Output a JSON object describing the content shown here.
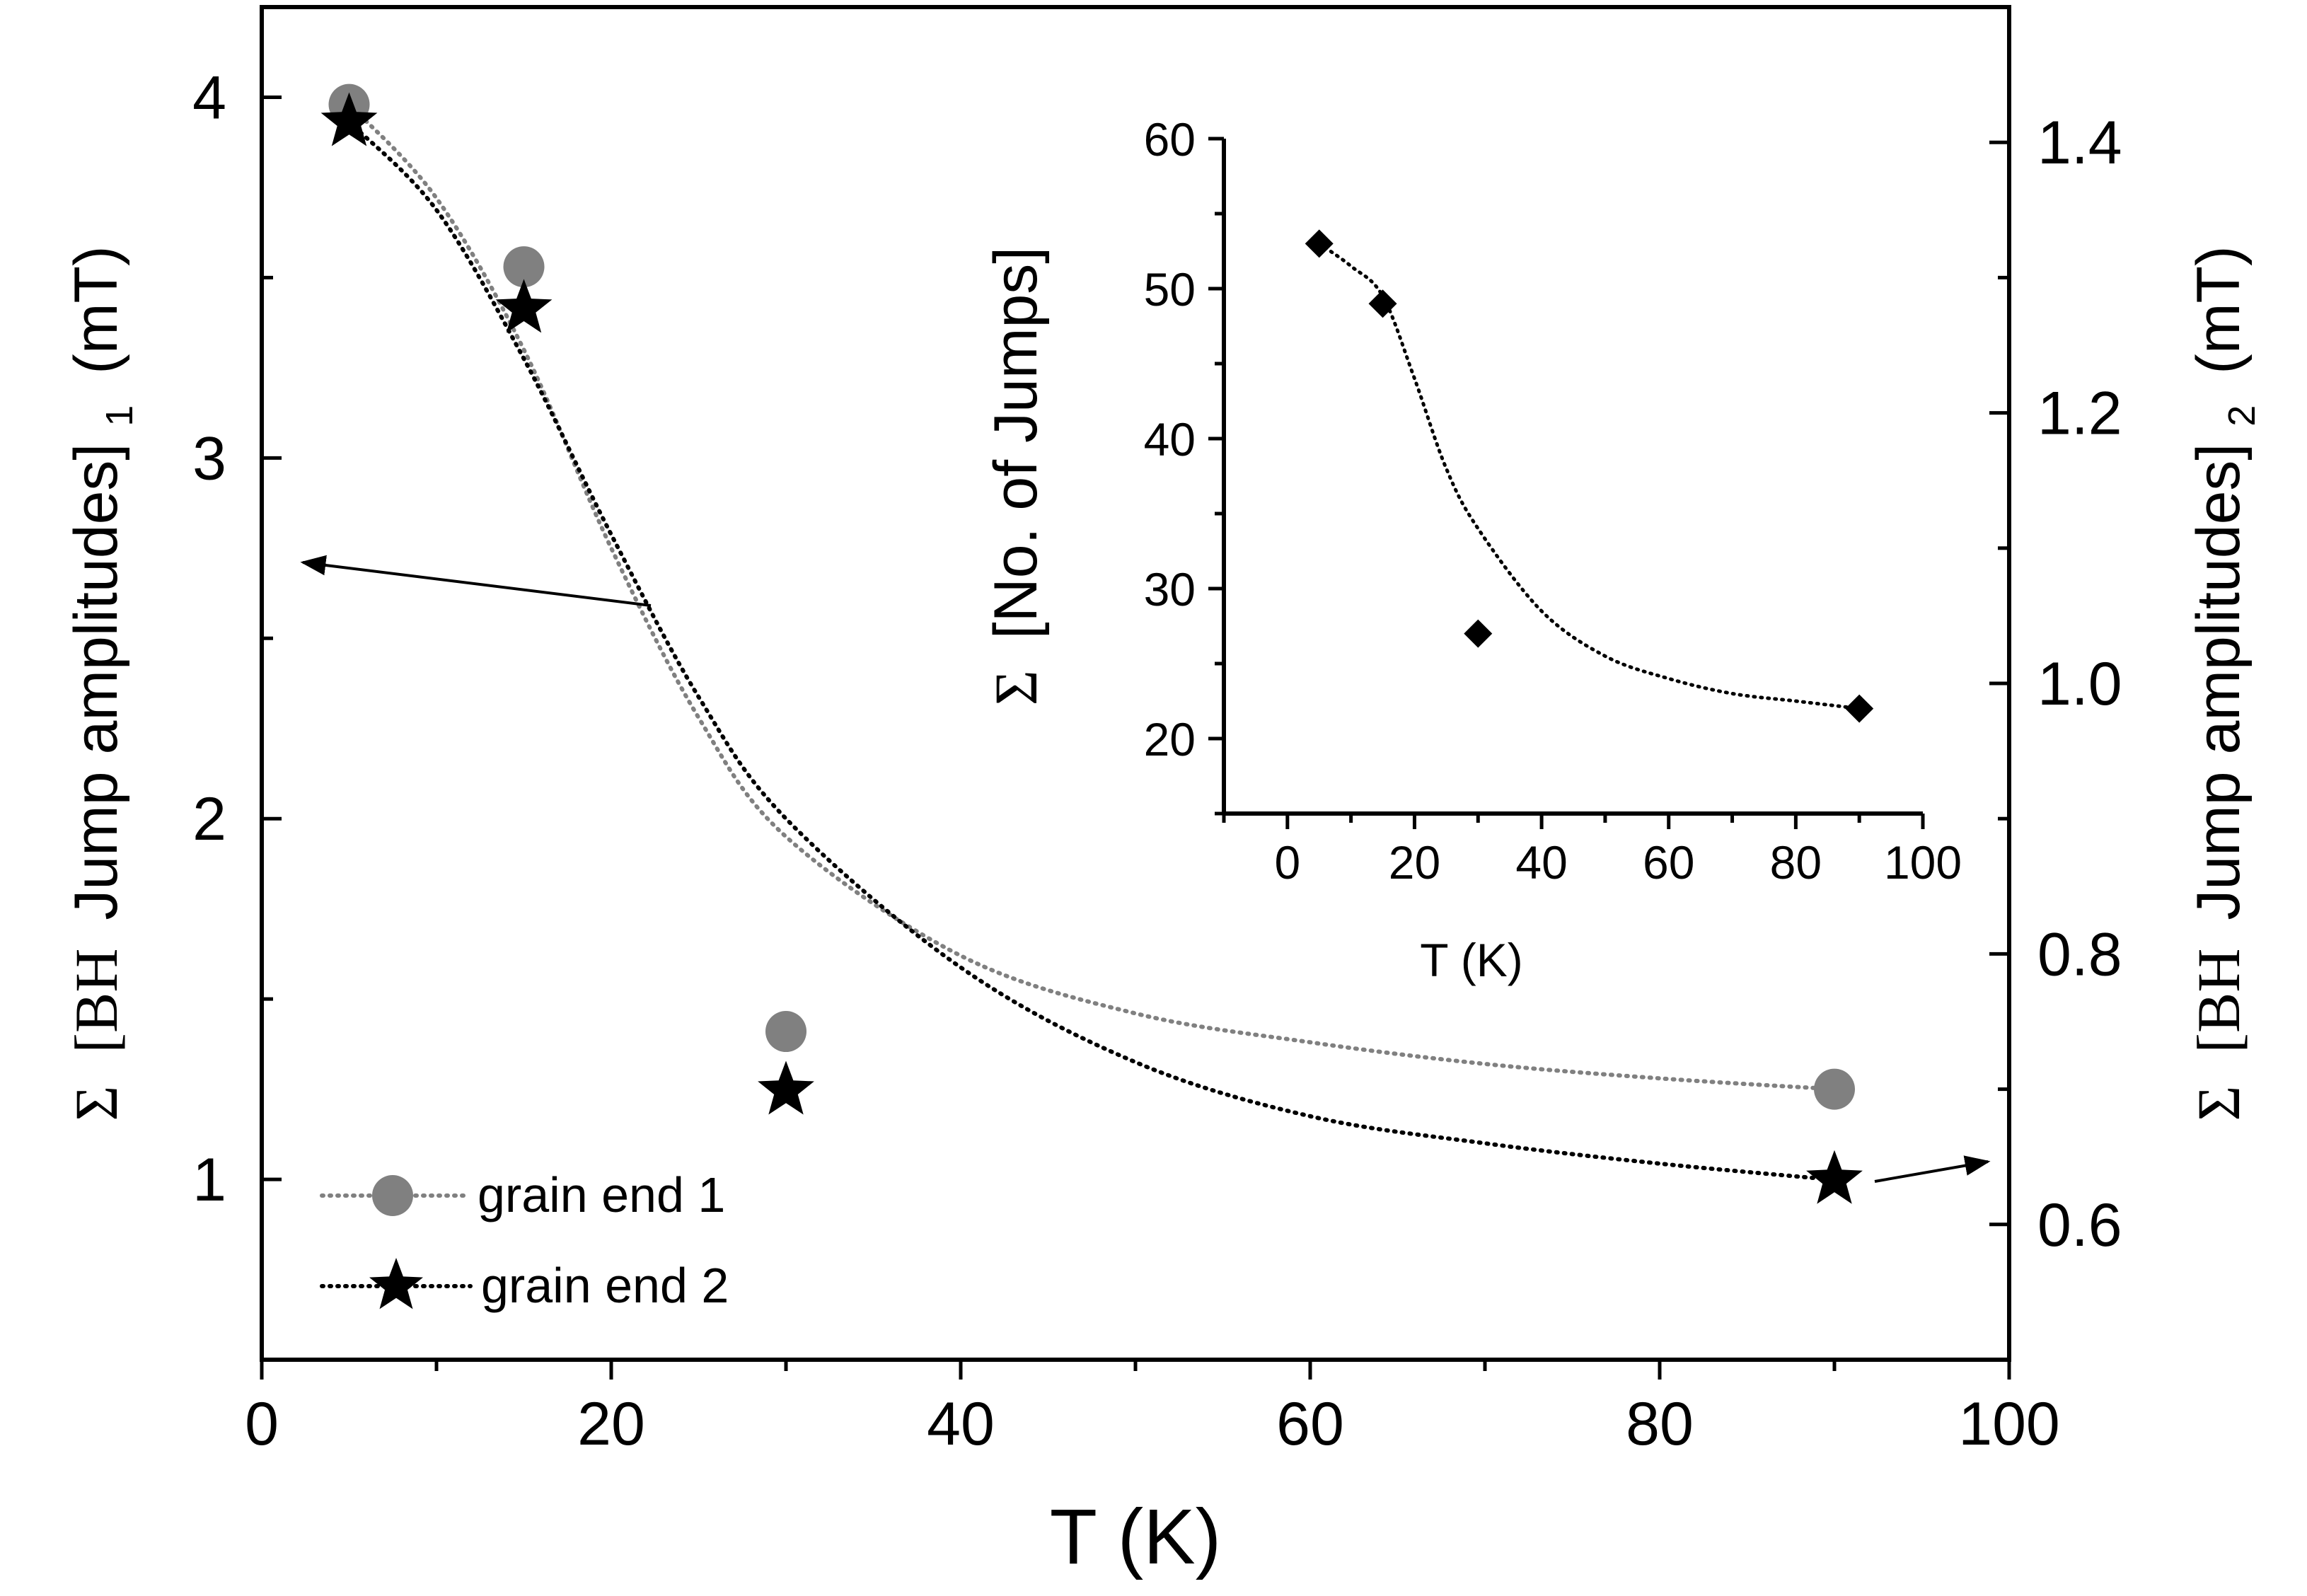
{
  "chart_data": [
    {
      "type": "scatter",
      "title": "",
      "xlabel": "T (K)",
      "xlim": [
        0,
        100
      ],
      "xticks": [
        0,
        20,
        40,
        60,
        80,
        100
      ],
      "ylabel_left": {
        "sigma": "Σ",
        "bh": "[BH",
        "rest": "Jump amplitudes]",
        "sub": "1",
        "unit": "(mT)"
      },
      "ylim_left": [
        0.5,
        4.25
      ],
      "yticks_left": [
        1,
        2,
        3,
        4
      ],
      "ylabel_right": {
        "sigma": "Σ",
        "bh": "[BH",
        "rest": "Jump amplitudes]",
        "sub": "2",
        "unit": "(mT)"
      },
      "ylim_right": [
        0.5,
        1.5
      ],
      "yticks_right": [
        "0.6",
        "0.8",
        "1.0",
        "1.2",
        "1.4"
      ],
      "series": [
        {
          "name": "grain end 1",
          "axis": "left",
          "marker": "circle",
          "color": "#808080",
          "x": [
            5,
            15,
            30,
            90
          ],
          "y": [
            3.98,
            3.53,
            1.41,
            1.25
          ],
          "fit_curve": {
            "style": "dotted",
            "color": "#808080",
            "points_x": [
              5,
              10,
              15,
              20,
              25,
              30,
              40,
              50,
              60,
              70,
              80,
              90
            ],
            "points_y": [
              3.98,
              3.72,
              3.3,
              2.75,
              2.28,
              1.95,
              1.62,
              1.46,
              1.38,
              1.32,
              1.28,
              1.25
            ]
          }
        },
        {
          "name": "grain end 2",
          "axis": "right",
          "marker": "star",
          "color": "#000000",
          "x": [
            5,
            15,
            30,
            90
          ],
          "y": [
            1.415,
            1.277,
            0.699,
            0.633
          ],
          "fit_curve": {
            "style": "dotted",
            "color": "#000000",
            "points_x": [
              5,
              10,
              15,
              20,
              25,
              30,
              40,
              50,
              60,
              70,
              80,
              90
            ],
            "points_y": [
              1.415,
              1.35,
              1.24,
              1.11,
              0.99,
              0.9,
              0.79,
              0.72,
              0.68,
              0.66,
              0.645,
              0.633
            ]
          }
        }
      ],
      "legend": {
        "position": "bottom-left",
        "entries": [
          "grain end 1",
          "grain end 2"
        ]
      },
      "annotations": [
        {
          "type": "arrow",
          "points_to": "left axis",
          "from_series": "grain end 1"
        },
        {
          "type": "arrow",
          "points_to": "right axis",
          "from_series": "grain end 2"
        }
      ]
    },
    {
      "type": "scatter",
      "title": "",
      "inset": true,
      "xlabel": "T (K)",
      "xlim": [
        -10,
        100
      ],
      "xticks": [
        0,
        20,
        40,
        60,
        80,
        100
      ],
      "ylabel": {
        "sigma": "Σ",
        "rest": "[No. of Jumps]"
      },
      "ylim": [
        15,
        60
      ],
      "yticks": [
        20,
        30,
        40,
        50,
        60
      ],
      "series": [
        {
          "name": "No. of Jumps",
          "marker": "diamond",
          "color": "#000000",
          "x": [
            5,
            15,
            30,
            90
          ],
          "y": [
            53,
            49,
            27,
            22
          ],
          "fit_curve": {
            "style": "dotted",
            "color": "#000000",
            "points_x": [
              5,
              10,
              15,
              20,
              25,
              30,
              40,
              50,
              60,
              70,
              80,
              90
            ],
            "points_y": [
              53,
              51.5,
              49.5,
              44,
              38,
              34,
              28.5,
              25.5,
              24,
              23,
              22.5,
              22
            ]
          }
        }
      ]
    }
  ]
}
